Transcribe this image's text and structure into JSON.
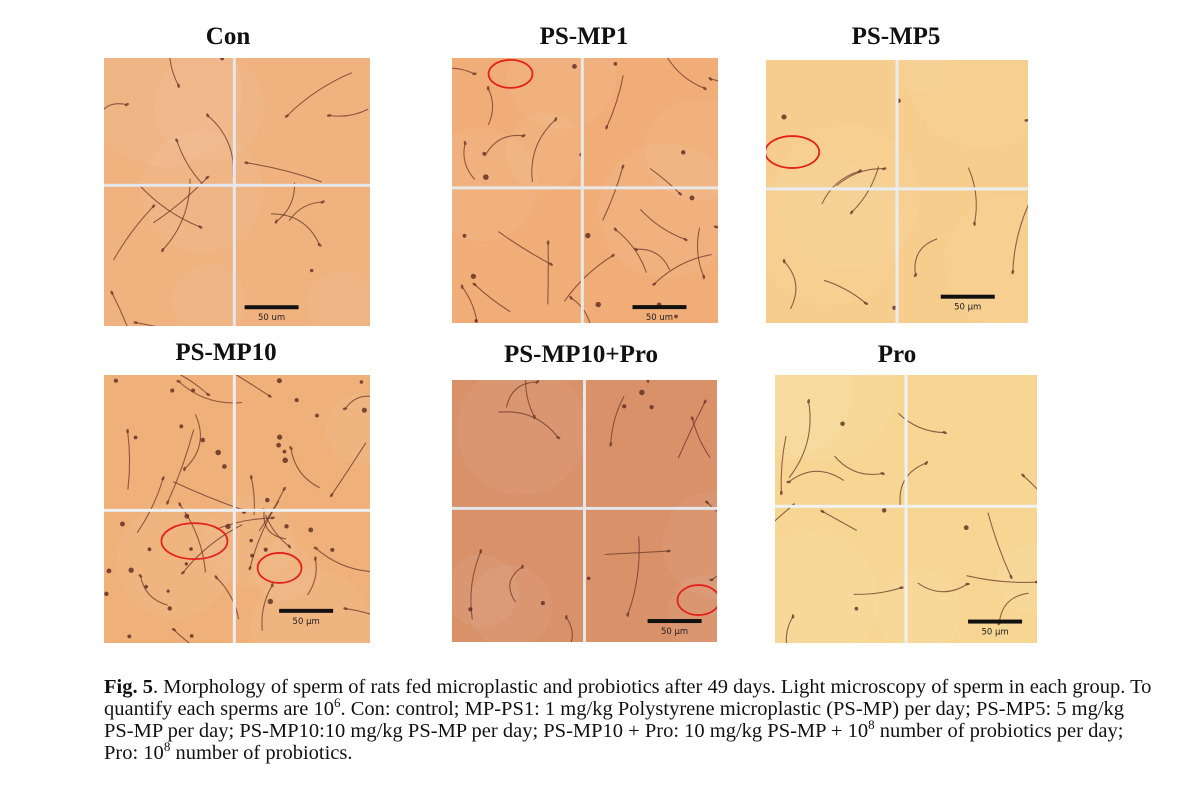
{
  "panels": [
    {
      "title": "Con",
      "scale": "50 um",
      "bg": "#f0b27f",
      "grid": "#e4e8ec"
    },
    {
      "title": "PS-MP1",
      "scale": "50 um",
      "bg": "#f1ad78",
      "grid": "#e8e8e8"
    },
    {
      "title": "PS-MP5",
      "scale": "50 µm",
      "bg": "#f6cd8c",
      "grid": "#e8eef0"
    },
    {
      "title": "PS-MP10",
      "scale": "50 µm",
      "bg": "#f0b07a",
      "grid": "#eceef0"
    },
    {
      "title": "PS-MP10+Pro",
      "scale": "50 µm",
      "bg": "#d9916a",
      "grid": "#e4e6ea"
    },
    {
      "title": "Pro",
      "scale": "50 µm",
      "bg": "#f7d693",
      "grid": "#eef2f2"
    }
  ],
  "caption": {
    "label": "Fig. 5",
    "sentence1": ". Morphology of sperm of rats fed microplastic and probiotics after 49 days. Light microscopy of sperm in each group. To quantify each sperms are 10",
    "sup1": "6",
    "sentence2": ". Con: control; MP-PS1: 1 mg/kg Polystyrene microplastic (PS-MP) per day; PS-MP5: 5 mg/kg PS-MP per day; PS-MP10:10 mg/kg PS-MP per day; PS-MP10 + Pro: 10 mg/kg PS-MP + 10",
    "sup2": "8",
    "sentence3": " number of probiotics per day; Pro: 10",
    "sup3": "8",
    "sentence4": " number of probiotics."
  },
  "colors": {
    "highlight_circle": "#e3221b",
    "sperm": "#6b3a2a"
  }
}
